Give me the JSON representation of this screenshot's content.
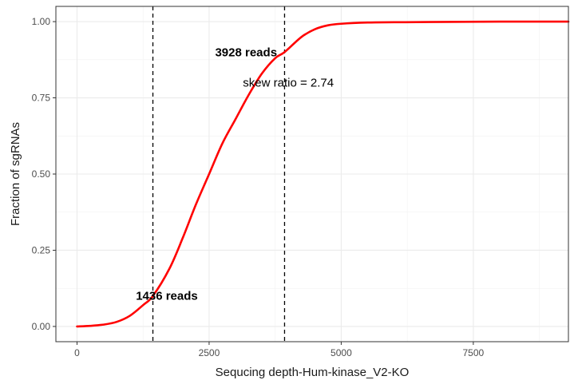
{
  "chart_data": {
    "type": "line",
    "xlabel": "Sequcing depth-Hum-kinase_V2-KO",
    "ylabel": "Fraction of sgRNAs",
    "xlim": [
      -400,
      9300
    ],
    "ylim": [
      -0.05,
      1.05
    ],
    "x_ticks": [
      0,
      2500,
      5000,
      7500
    ],
    "x_tick_labels": [
      "0",
      "2500",
      "5000",
      "7500"
    ],
    "y_ticks": [
      0.0,
      0.25,
      0.5,
      0.75,
      1.0
    ],
    "y_tick_labels": [
      "0.00",
      "0.25",
      "0.50",
      "0.75",
      "1.00"
    ],
    "grid": true,
    "line_color": "#ff0000",
    "series": [
      {
        "x": [
          0,
          250,
          500,
          750,
          1000,
          1250,
          1436,
          1750,
          2000,
          2250,
          2500,
          2750,
          3000,
          3250,
          3500,
          3750,
          3928,
          4250,
          4500,
          4750,
          5000,
          5500,
          6000,
          7000,
          8000,
          9300
        ],
        "values": [
          0.0,
          0.002,
          0.006,
          0.015,
          0.035,
          0.07,
          0.1,
          0.19,
          0.29,
          0.4,
          0.5,
          0.6,
          0.68,
          0.76,
          0.83,
          0.88,
          0.9,
          0.95,
          0.975,
          0.988,
          0.993,
          0.997,
          0.998,
          0.999,
          1.0,
          1.0
        ]
      }
    ],
    "vlines": [
      1436,
      3928
    ],
    "annotations": [
      {
        "text": "1436 reads",
        "x": 1700,
        "y": 0.1,
        "bold": true
      },
      {
        "text": "3928 reads",
        "x": 3200,
        "y": 0.9,
        "bold": true
      },
      {
        "text": "skew ratio = 2.74",
        "x": 4000,
        "y": 0.8,
        "bold": false
      }
    ]
  }
}
